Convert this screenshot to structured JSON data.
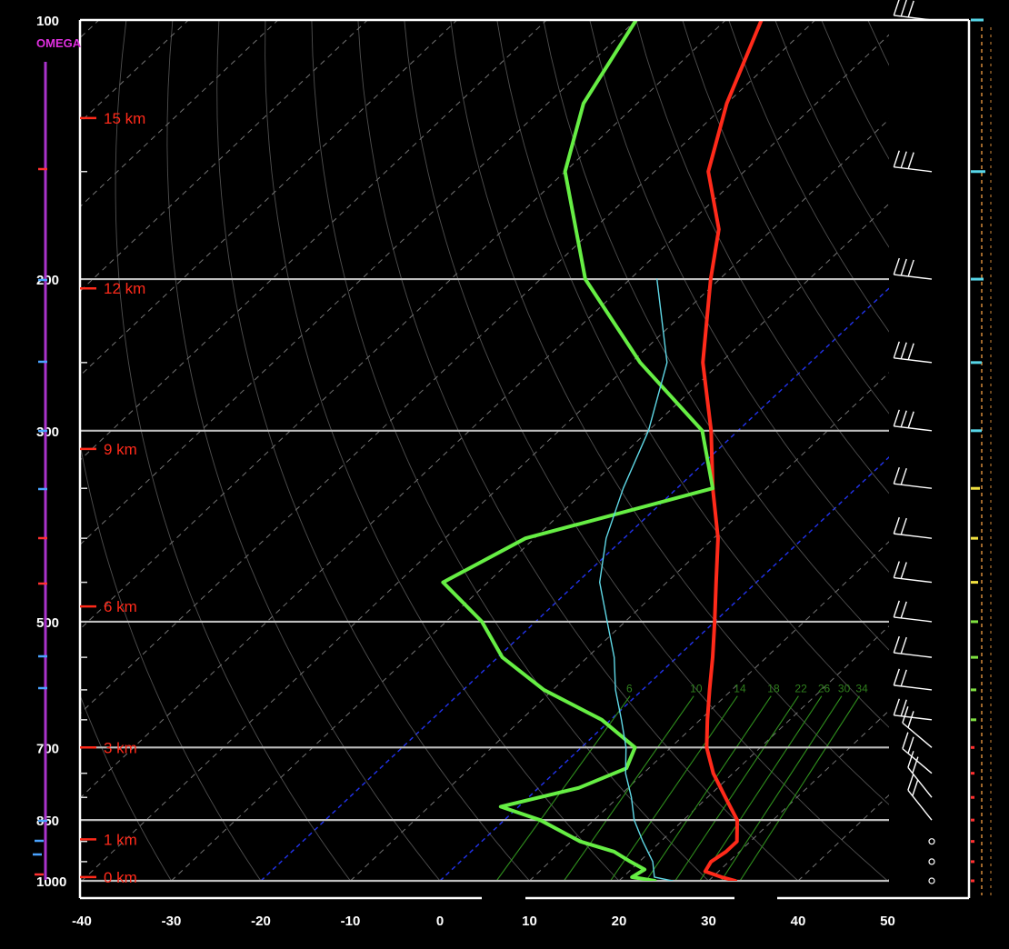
{
  "chart_data": {
    "type": "line",
    "title": "",
    "omega_label": "OMEGA",
    "pressure_levels": [
      100,
      200,
      300,
      500,
      700,
      850,
      1000
    ],
    "pressure_labels": [
      "100",
      "200",
      "300",
      "500",
      "700",
      "850",
      "1000"
    ],
    "temperature_ticks": [
      -40,
      -30,
      -20,
      -10,
      0,
      10,
      20,
      30,
      40,
      50
    ],
    "temperature_tick_labels": [
      "-40",
      "-30",
      "-20",
      "-10",
      "0",
      "10",
      "20",
      "30",
      "40",
      "50"
    ],
    "xlim": [
      -40,
      50
    ],
    "ylim_hPa": [
      1000,
      100
    ],
    "y_scale": "log",
    "height_labels": [
      {
        "label": "15 km",
        "p": 130
      },
      {
        "label": "12 km",
        "p": 205
      },
      {
        "label": "9 km",
        "p": 315
      },
      {
        "label": "6 km",
        "p": 480
      },
      {
        "label": "3 km",
        "p": 700
      },
      {
        "label": "1 km",
        "p": 895
      },
      {
        "label": "0 km",
        "p": 990
      }
    ],
    "mixing_ratio_labels": [
      "6",
      "10",
      "14",
      "18",
      "22",
      "26",
      "30",
      "34"
    ],
    "mixing_ratio_g_per_kg": [
      6,
      10,
      14,
      18,
      22,
      26,
      30,
      34
    ],
    "series": [
      {
        "name": "Temperature",
        "color": "#ff2a1a",
        "points": [
          {
            "p": 1000,
            "t": 33
          },
          {
            "p": 990,
            "t": 31
          },
          {
            "p": 975,
            "t": 28.5
          },
          {
            "p": 950,
            "t": 28
          },
          {
            "p": 925,
            "t": 28.5
          },
          {
            "p": 900,
            "t": 28.5
          },
          {
            "p": 850,
            "t": 26
          },
          {
            "p": 800,
            "t": 22
          },
          {
            "p": 750,
            "t": 17.8
          },
          {
            "p": 700,
            "t": 14
          },
          {
            "p": 650,
            "t": 10.8
          },
          {
            "p": 600,
            "t": 7.5
          },
          {
            "p": 550,
            "t": 4
          },
          {
            "p": 500,
            "t": 0
          },
          {
            "p": 450,
            "t": -4.5
          },
          {
            "p": 400,
            "t": -9.5
          },
          {
            "p": 350,
            "t": -16
          },
          {
            "p": 300,
            "t": -23
          },
          {
            "p": 250,
            "t": -32
          },
          {
            "p": 200,
            "t": -41
          },
          {
            "p": 175,
            "t": -46
          },
          {
            "p": 150,
            "t": -54
          },
          {
            "p": 125,
            "t": -60
          },
          {
            "p": 100,
            "t": -66
          }
        ]
      },
      {
        "name": "Dewpoint",
        "color": "#66ee44",
        "points": [
          {
            "p": 1000,
            "t": 24
          },
          {
            "p": 990,
            "t": 21
          },
          {
            "p": 970,
            "t": 21.5
          },
          {
            "p": 950,
            "t": 19
          },
          {
            "p": 925,
            "t": 16
          },
          {
            "p": 900,
            "t": 11
          },
          {
            "p": 850,
            "t": 4
          },
          {
            "p": 820,
            "t": -2
          },
          {
            "p": 780,
            "t": 4.5
          },
          {
            "p": 740,
            "t": 7.5
          },
          {
            "p": 700,
            "t": 6
          },
          {
            "p": 650,
            "t": -1
          },
          {
            "p": 600,
            "t": -11
          },
          {
            "p": 550,
            "t": -19.5
          },
          {
            "p": 500,
            "t": -26
          },
          {
            "p": 450,
            "t": -35
          },
          {
            "p": 400,
            "t": -31
          },
          {
            "p": 350,
            "t": -16
          },
          {
            "p": 300,
            "t": -24
          },
          {
            "p": 250,
            "t": -39
          },
          {
            "p": 200,
            "t": -55
          },
          {
            "p": 150,
            "t": -70
          },
          {
            "p": 125,
            "t": -76
          },
          {
            "p": 100,
            "t": -80
          }
        ]
      },
      {
        "name": "Wetbulb",
        "color": "#5fd8e6",
        "points": [
          {
            "p": 1000,
            "t": 26
          },
          {
            "p": 990,
            "t": 23.5
          },
          {
            "p": 950,
            "t": 21.5
          },
          {
            "p": 900,
            "t": 18
          },
          {
            "p": 850,
            "t": 14.5
          },
          {
            "p": 800,
            "t": 11.5
          },
          {
            "p": 750,
            "t": 8
          },
          {
            "p": 700,
            "t": 5
          },
          {
            "p": 650,
            "t": 1.2
          },
          {
            "p": 600,
            "t": -3
          },
          {
            "p": 550,
            "t": -7
          },
          {
            "p": 500,
            "t": -12
          },
          {
            "p": 450,
            "t": -17.5
          },
          {
            "p": 400,
            "t": -22
          },
          {
            "p": 350,
            "t": -26
          },
          {
            "p": 300,
            "t": -30
          },
          {
            "p": 250,
            "t": -36
          },
          {
            "p": 200,
            "t": -47
          }
        ]
      }
    ],
    "grid": true,
    "wind_barbs": [
      {
        "p": 100
      },
      {
        "p": 150
      },
      {
        "p": 200
      },
      {
        "p": 250
      },
      {
        "p": 300
      },
      {
        "p": 350
      },
      {
        "p": 400
      },
      {
        "p": 450
      },
      {
        "p": 500
      },
      {
        "p": 550
      },
      {
        "p": 600
      },
      {
        "p": 650
      },
      {
        "p": 700
      },
      {
        "p": 750
      },
      {
        "p": 800
      },
      {
        "p": 850
      },
      {
        "p": 900
      },
      {
        "p": 950
      },
      {
        "p": 1000
      }
    ],
    "colors": {
      "temperature": "#ff2a1a",
      "dewpoint": "#66ee44",
      "wetbulb": "#5fd8e6",
      "isotherm": "#8a8a8a",
      "isobar": "#bdbdbd",
      "freezing_lines": "#2233ee",
      "mixing_ratio": "#2f8f1d",
      "height_labels": "#ff2a1a",
      "omega": "#aa33cc"
    }
  }
}
